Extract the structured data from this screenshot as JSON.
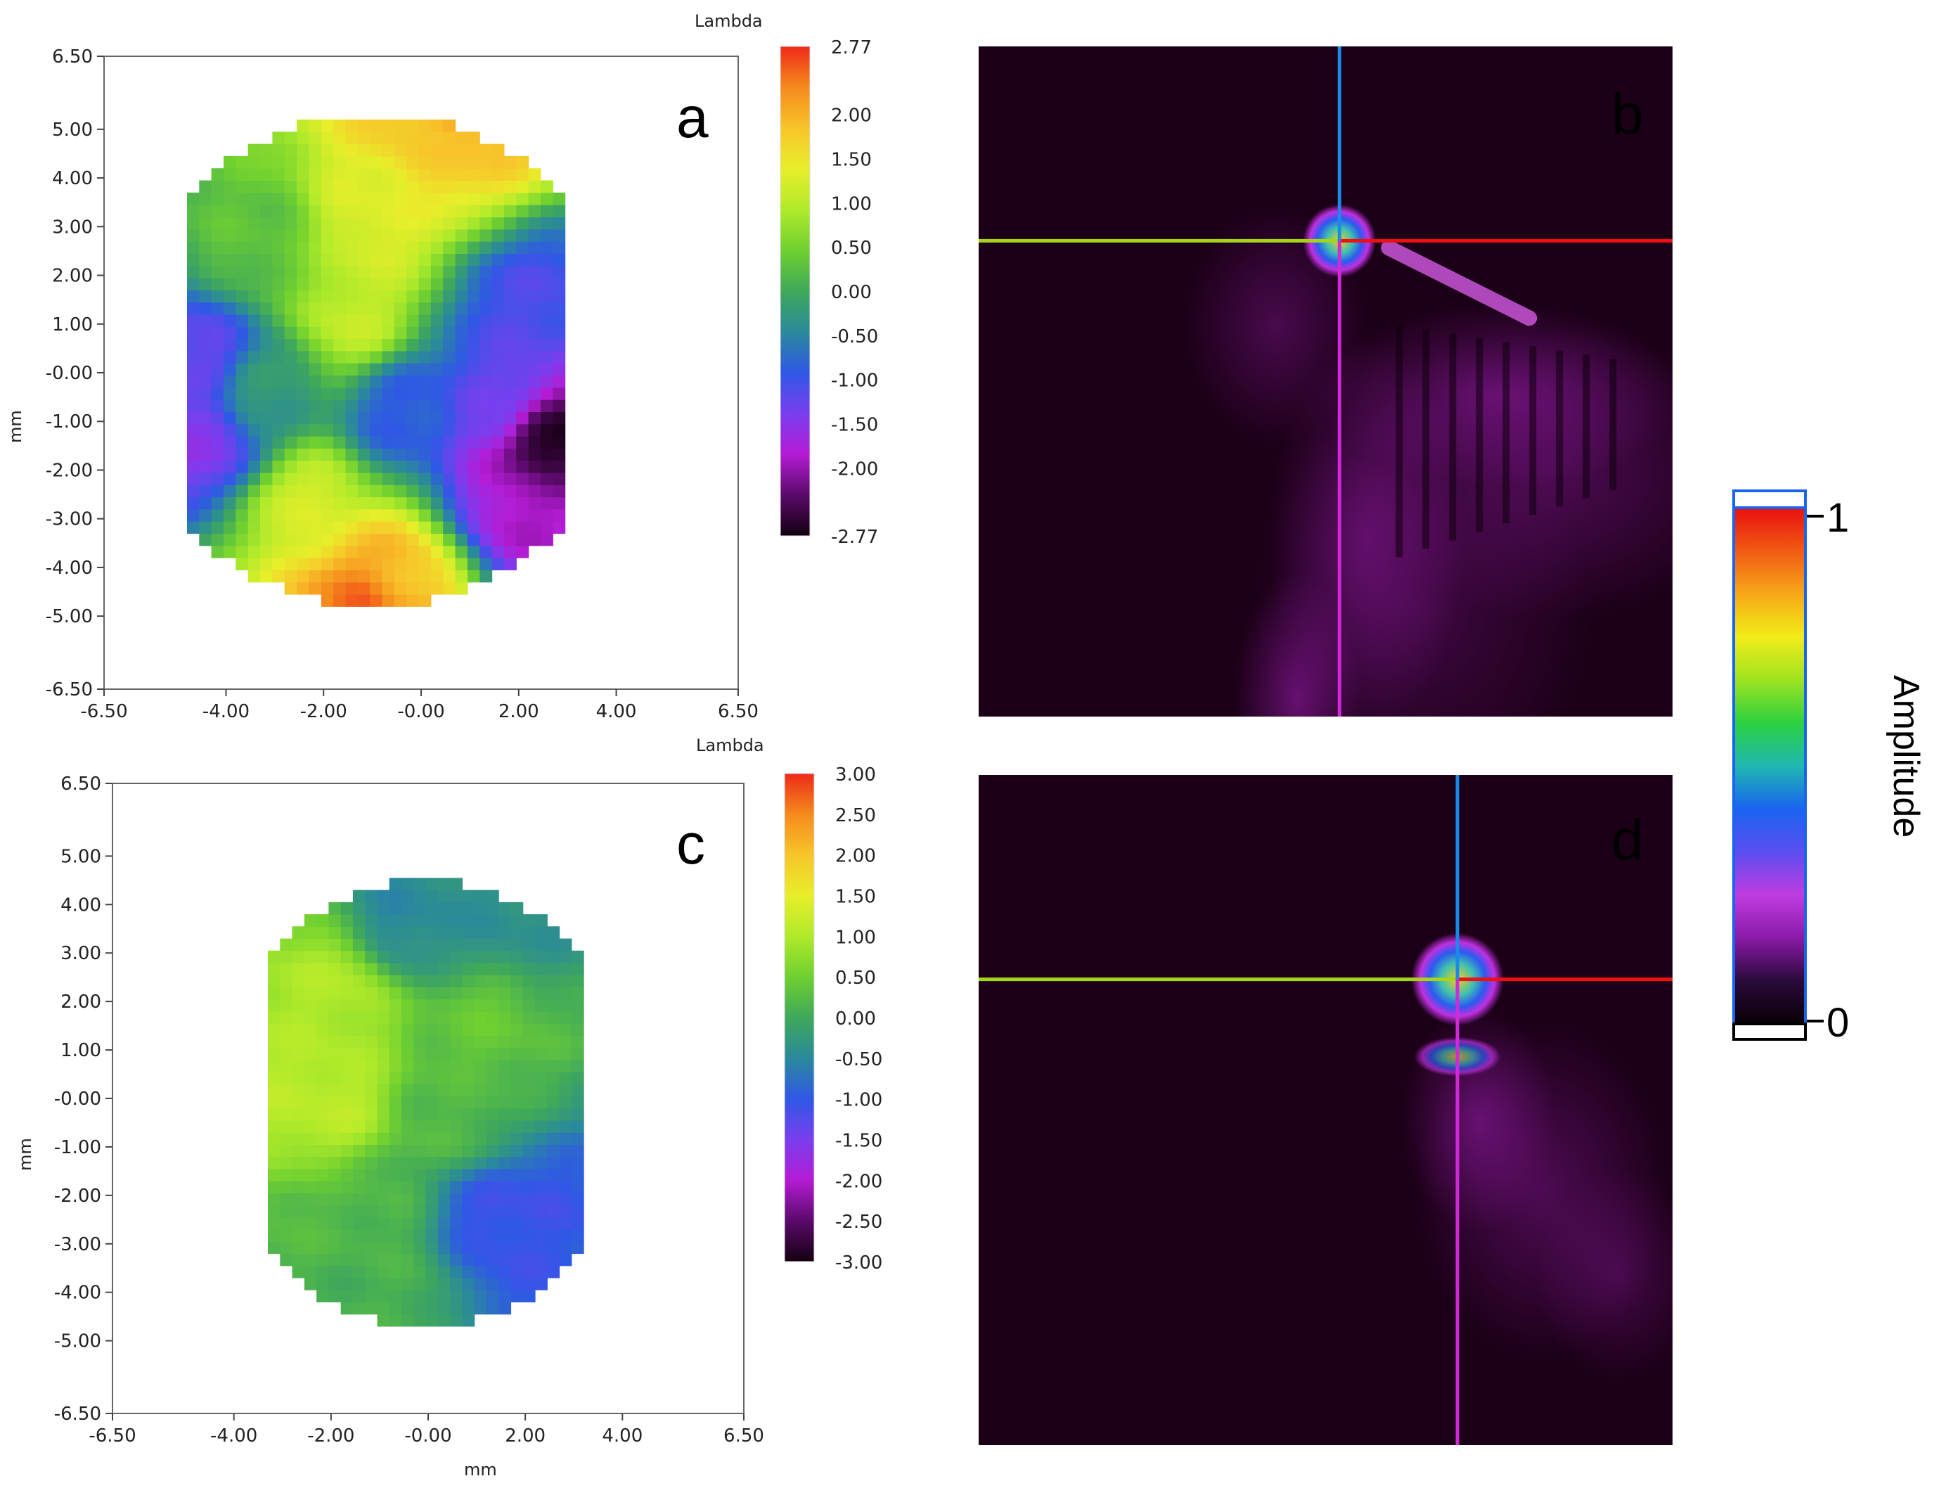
{
  "colors": {
    "map_stops": [
      "#140010",
      "#5a0a6a",
      "#b41cd4",
      "#7a3ef0",
      "#2f58e6",
      "#2a8a9a",
      "#3fa85a",
      "#6fd030",
      "#b0ea2a",
      "#e8ee2a",
      "#f7c52a",
      "#f58a1c",
      "#ee2a1a"
    ],
    "amplitude_stops": [
      "#0a0006",
      "#2a0a3a",
      "#8a1aa8",
      "#c03ce0",
      "#5a4ef0",
      "#1a64f0",
      "#20b8b0",
      "#2cd040",
      "#9ee420",
      "#f2ec18",
      "#f6a818",
      "#f05a14",
      "#e81010"
    ],
    "psf_background": "#1c0018"
  },
  "chart_data": [
    {
      "panel": "a",
      "type": "heatmap",
      "colorbar_title": "Lambda",
      "ylabel": "mm",
      "xlabel": "",
      "xlim": [
        -6.5,
        6.5
      ],
      "ylim": [
        -6.5,
        6.5
      ],
      "x_ticks": [
        "-6.50",
        "-4.00",
        "-2.00",
        "-0.00",
        "2.00",
        "4.00",
        "6.50"
      ],
      "y_ticks": [
        "6.50",
        "5.00",
        "4.00",
        "3.00",
        "2.00",
        "1.00",
        "-0.00",
        "-1.00",
        "-2.00",
        "-3.00",
        "-4.00",
        "-5.00",
        "-6.50"
      ],
      "colorbar_range": [
        -2.77,
        2.77
      ],
      "colorbar_ticks": [
        "2.77",
        "2.00",
        "1.50",
        "1.00",
        "0.50",
        "0.00",
        "-0.50",
        "-1.00",
        "-1.50",
        "-2.00",
        "-2.77"
      ],
      "aperture_x": [
        -4.8,
        2.9
      ],
      "aperture_y": [
        -4.8,
        5.3
      ],
      "features": [
        {
          "x": -1.0,
          "y": 3.0,
          "value": 1.3
        },
        {
          "x": -1.5,
          "y": 1.0,
          "value": 1.1
        },
        {
          "x": -3.5,
          "y": 2.5,
          "value": 0.3
        },
        {
          "x": 0.3,
          "y": 4.8,
          "value": 1.6
        },
        {
          "x": 0.5,
          "y": 5.2,
          "value": 2.4
        },
        {
          "x": 2.0,
          "y": 1.2,
          "value": -1.1
        },
        {
          "x": 1.5,
          "y": -0.8,
          "value": -1.2
        },
        {
          "x": 2.3,
          "y": -1.5,
          "value": -2.77
        },
        {
          "x": 2.0,
          "y": -2.8,
          "value": -1.9
        },
        {
          "x": -0.5,
          "y": -0.9,
          "value": -0.9
        },
        {
          "x": -4.5,
          "y": -1.5,
          "value": -1.5
        },
        {
          "x": -4.6,
          "y": 0.2,
          "value": -1.3
        },
        {
          "x": -3.5,
          "y": -0.5,
          "value": -0.2
        },
        {
          "x": -2.5,
          "y": -2.8,
          "value": 1.2
        },
        {
          "x": -0.8,
          "y": -4.4,
          "value": 1.8
        },
        {
          "x": -1.2,
          "y": -4.7,
          "value": 2.6
        }
      ]
    },
    {
      "panel": "c",
      "type": "heatmap",
      "colorbar_title": "Lambda",
      "ylabel": "mm",
      "xlabel": "mm",
      "xlim": [
        -6.5,
        6.5
      ],
      "ylim": [
        -6.5,
        6.5
      ],
      "x_ticks": [
        "-6.50",
        "-4.00",
        "-2.00",
        "-0.00",
        "2.00",
        "4.00",
        "6.50"
      ],
      "y_ticks": [
        "6.50",
        "5.00",
        "4.00",
        "3.00",
        "2.00",
        "1.00",
        "-0.00",
        "-1.00",
        "-2.00",
        "-3.00",
        "-4.00",
        "-5.00",
        "-6.50"
      ],
      "colorbar_range": [
        -3.0,
        3.0
      ],
      "colorbar_ticks": [
        "3.00",
        "2.50",
        "2.00",
        "1.50",
        "1.00",
        "0.50",
        "0.00",
        "-0.50",
        "-1.00",
        "-1.50",
        "-2.00",
        "-2.50",
        "-3.00"
      ],
      "aperture_x": [
        -3.3,
        3.2
      ],
      "aperture_y": [
        -4.7,
        4.5
      ],
      "features": [
        {
          "x": -2.0,
          "y": 2.0,
          "value": 1.0
        },
        {
          "x": -2.2,
          "y": -0.2,
          "value": 1.1
        },
        {
          "x": 1.0,
          "y": 1.5,
          "value": 0.4
        },
        {
          "x": -0.5,
          "y": 3.5,
          "value": -0.5
        },
        {
          "x": 1.5,
          "y": 3.5,
          "value": -0.4
        },
        {
          "x": 0.5,
          "y": -0.5,
          "value": 0.2
        },
        {
          "x": 1.8,
          "y": -2.8,
          "value": -1.0
        },
        {
          "x": 1.5,
          "y": -2.6,
          "value": -1.2
        },
        {
          "x": -1.5,
          "y": -2.5,
          "value": 0.2
        },
        {
          "x": -1.0,
          "y": -4.0,
          "value": 0.1
        }
      ]
    },
    {
      "panel": "b",
      "type": "heatmap",
      "colorbar_title": "Amplitude",
      "colorbar_ticks": [
        "1",
        "0"
      ],
      "peak": {
        "x": 0.52,
        "y": 0.29
      },
      "description_values": {
        "peak_amplitude": 1.0
      }
    },
    {
      "panel": "d",
      "type": "heatmap",
      "colorbar_title": "Amplitude",
      "colorbar_ticks": [
        "1",
        "0"
      ],
      "peak": {
        "x": 0.69,
        "y": 0.305
      },
      "description_values": {
        "peak_amplitude": 1.0
      }
    }
  ],
  "labels": {
    "a": "a",
    "b": "b",
    "c": "c",
    "d": "d"
  },
  "amplitude_bar": {
    "title": "Amplitude",
    "top": "1",
    "bottom": "0"
  }
}
